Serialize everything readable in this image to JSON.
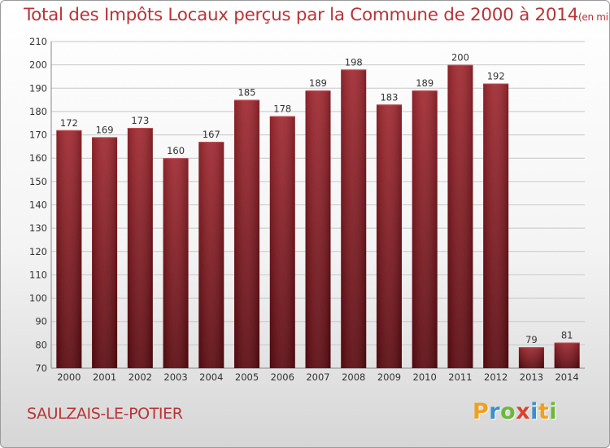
{
  "chart_data": {
    "type": "bar",
    "title": "Total des Impôts Locaux perçus par la Commune de 2000 à 2014",
    "unit_note": "(en milliers d'€)",
    "categories": [
      "2000",
      "2001",
      "2002",
      "2003",
      "2004",
      "2005",
      "2006",
      "2007",
      "2008",
      "2009",
      "2010",
      "2011",
      "2012",
      "2013",
      "2014"
    ],
    "values": [
      172,
      169,
      173,
      160,
      167,
      185,
      178,
      189,
      198,
      183,
      189,
      200,
      192,
      79,
      81
    ],
    "ylim": [
      70,
      210
    ],
    "yticks": [
      70,
      80,
      90,
      100,
      110,
      120,
      130,
      140,
      150,
      160,
      170,
      180,
      190,
      200,
      210
    ],
    "grid": true,
    "bar_color": "#7a1a20"
  },
  "commune_name": "SAULZAIS-LE-POTIER",
  "logo": {
    "letters": [
      "P",
      "r",
      "o",
      "x",
      "i",
      "t",
      "i"
    ],
    "colors": [
      "#f0a020",
      "#3a8fd0",
      "#6cb83a",
      "#e04030",
      "#3a8fd0",
      "#f0a020",
      "#6cb83a"
    ]
  }
}
